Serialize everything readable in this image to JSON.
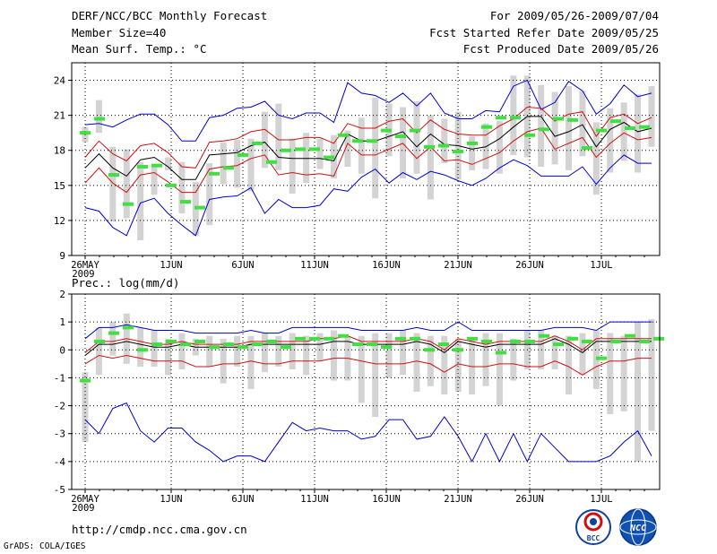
{
  "header": {
    "title": "DERF/NCC/BCC Monthly Forecast",
    "member_size": "Member Size=40",
    "variable": "Mean Surf. Temp.: °C",
    "period": "For 2009/05/26-2009/07/04",
    "refer_date": "Fcst Started Refer Date 2009/05/25",
    "produced_date": "Fcst Produced Date 2009/05/26"
  },
  "footer": {
    "url": "http://cmdp.ncc.cma.gov.cn",
    "credit": "GrADS: COLA/IGES",
    "logo_left_text": "BCC",
    "logo_right_text": "NCC"
  },
  "colors": {
    "ensemble_mean": "#000000",
    "spread_line": "#d01010",
    "min_max_line": "#0000cc",
    "member_box": "#d3d3d3",
    "observed": "#40e040",
    "grid": "#000000"
  },
  "chart_data": [
    {
      "type": "line",
      "name": "temperature-panel",
      "ylabel": "Mean Surf. Temp.: °C",
      "ylim": [
        9,
        25.5
      ],
      "yticks": [
        9,
        12,
        15,
        18,
        21,
        24
      ],
      "xlim": [
        0,
        39.5
      ],
      "xticks": [
        {
          "x": 0,
          "label": "26MAY"
        },
        {
          "x": 6,
          "label": "1JUN"
        },
        {
          "x": 11,
          "label": "6JUN"
        },
        {
          "x": 16,
          "label": "11JUN"
        },
        {
          "x": 21,
          "label": "16JUN"
        },
        {
          "x": 26,
          "label": "21JUN"
        },
        {
          "x": 31,
          "label": "26JUN"
        },
        {
          "x": 36,
          "label": "1JUL"
        }
      ],
      "year_label": "2009",
      "grid": "dotted",
      "series": [
        {
          "name": "ensemble max",
          "color": "#0000cc",
          "values": [
            20.2,
            20.3,
            20.0,
            20.6,
            21.1,
            21.1,
            20.2,
            18.8,
            18.8,
            20.8,
            21.0,
            21.6,
            21.7,
            22.2,
            21.0,
            20.7,
            21.2,
            21.2,
            20.4,
            23.8,
            22.9,
            22.7,
            22.1,
            22.9,
            21.8,
            22.9,
            21.2,
            20.7,
            20.7,
            21.4,
            21.3,
            23.5,
            24.0,
            21.5,
            22.1,
            23.9,
            23.1,
            21.1,
            22.0,
            23.6,
            22.6,
            22.9
          ]
        },
        {
          "name": "spread upper",
          "color": "#d01010",
          "values": [
            17.4,
            18.8,
            17.7,
            17.1,
            18.4,
            18.6,
            17.8,
            16.6,
            16.5,
            18.7,
            18.8,
            19.0,
            19.6,
            19.8,
            18.9,
            18.9,
            19.1,
            19.1,
            18.6,
            20.3,
            19.9,
            19.9,
            20.5,
            20.7,
            19.5,
            20.6,
            19.8,
            19.4,
            19.3,
            19.3,
            20.1,
            20.7,
            21.7,
            21.6,
            20.5,
            21.1,
            21.3,
            19.2,
            20.8,
            21.1,
            20.3,
            20.8
          ]
        },
        {
          "name": "ensemble mean",
          "color": "#000000",
          "values": [
            16.5,
            17.7,
            16.5,
            15.8,
            17.2,
            17.4,
            16.6,
            15.5,
            15.5,
            17.6,
            17.7,
            17.8,
            18.4,
            18.7,
            17.4,
            17.3,
            17.3,
            17.3,
            17.1,
            19.4,
            18.8,
            18.8,
            19.2,
            19.6,
            18.3,
            19.4,
            18.5,
            18.4,
            18.1,
            18.3,
            19.0,
            20.0,
            20.9,
            20.9,
            19.2,
            19.6,
            20.2,
            18.3,
            19.8,
            20.4,
            19.6,
            19.9
          ]
        },
        {
          "name": "spread lower",
          "color": "#d01010",
          "values": [
            15.2,
            16.5,
            15.2,
            14.4,
            15.9,
            16.1,
            15.3,
            14.4,
            14.4,
            16.4,
            16.6,
            16.7,
            17.3,
            17.6,
            15.9,
            16.1,
            15.9,
            16.0,
            15.8,
            18.6,
            17.6,
            17.6,
            18.1,
            18.6,
            17.3,
            18.3,
            17.1,
            17.2,
            16.8,
            17.3,
            17.8,
            18.8,
            19.6,
            19.9,
            18.1,
            18.6,
            19.1,
            17.4,
            18.6,
            19.5,
            18.9,
            19.1
          ]
        },
        {
          "name": "ensemble min",
          "color": "#0000cc",
          "values": [
            13.1,
            12.8,
            11.4,
            10.7,
            13.5,
            13.9,
            12.6,
            11.6,
            10.7,
            13.8,
            14.0,
            14.1,
            14.8,
            12.6,
            13.8,
            13.1,
            13.1,
            13.3,
            14.7,
            14.5,
            15.7,
            16.4,
            15.2,
            16.1,
            15.5,
            16.2,
            15.9,
            15.4,
            15.0,
            15.6,
            16.5,
            17.2,
            16.7,
            15.8,
            15.8,
            15.8,
            16.6,
            15.1,
            16.5,
            17.6,
            16.9,
            16.9
          ]
        }
      ],
      "members_box": {
        "low": [
          18.7,
          19.5,
          11.9,
          12.2,
          10.3,
          14.2,
          16.3,
          12.6,
          10.7,
          11.6,
          15.1,
          14.8,
          14.5,
          16.5,
          16.3,
          14.3,
          15.2,
          16.4,
          15.6,
          16.6,
          16.0,
          13.9,
          17.5,
          15.6,
          16.0,
          13.8,
          16.9,
          15.5,
          16.3,
          16.4,
          16.0,
          17.6,
          17.4,
          16.6,
          16.8,
          16.3,
          17.5,
          14.2,
          16.1,
          17.1,
          16.1,
          18.3
        ],
        "high": [
          20.0,
          22.3,
          18.3,
          18.1,
          17.0,
          16.8,
          17.4,
          17.0,
          15.3,
          16.9,
          18.7,
          18.9,
          19.0,
          21.3,
          22.0,
          19.0,
          19.5,
          19.0,
          19.3,
          19.7,
          20.8,
          22.5,
          22.0,
          21.7,
          22.2,
          21.0,
          20.7,
          21.3,
          19.2,
          20.3,
          20.5,
          24.4,
          24.4,
          23.6,
          23.0,
          23.5,
          23.1,
          20.4,
          21.6,
          22.1,
          22.8,
          23.5
        ]
      },
      "observed": [
        19.5,
        20.7,
        15.9,
        13.4,
        16.6,
        16.7,
        15.0,
        13.6,
        13.1,
        16.0,
        16.5,
        17.6,
        18.6,
        17.0,
        18.0,
        18.1,
        18.1,
        17.4,
        19.3,
        18.8,
        18.8,
        19.7,
        19.2,
        19.7,
        18.3,
        18.4,
        17.9,
        18.6,
        20.0,
        20.8,
        20.8,
        19.3,
        19.8,
        20.7,
        20.6,
        18.2,
        19.7,
        20.5,
        19.9,
        20.0
      ]
    },
    {
      "type": "line",
      "name": "precipitation-panel",
      "ylabel": "Prec.: log(mm/d)",
      "ylim": [
        -5,
        2
      ],
      "yticks": [
        -5,
        -4,
        -3,
        -2,
        -1,
        0,
        1,
        2
      ],
      "xlim": [
        0,
        39.5
      ],
      "xticks": [
        {
          "x": 0,
          "label": "26MAY"
        },
        {
          "x": 6,
          "label": "1JUN"
        },
        {
          "x": 11,
          "label": "6JUN"
        },
        {
          "x": 16,
          "label": "11JUN"
        },
        {
          "x": 21,
          "label": "16JUN"
        },
        {
          "x": 26,
          "label": "21JUN"
        },
        {
          "x": 31,
          "label": "26JUN"
        },
        {
          "x": 36,
          "label": "1JUL"
        }
      ],
      "year_label": "2009",
      "grid": "dotted",
      "series": [
        {
          "name": "ensemble max",
          "color": "#0000cc",
          "values": [
            0.4,
            0.8,
            0.8,
            0.9,
            0.8,
            0.7,
            0.7,
            0.7,
            0.6,
            0.6,
            0.6,
            0.6,
            0.7,
            0.6,
            0.6,
            0.8,
            0.8,
            0.8,
            0.8,
            0.8,
            0.7,
            0.7,
            0.7,
            0.7,
            0.8,
            0.7,
            0.7,
            1.0,
            0.7,
            0.7,
            0.7,
            0.7,
            0.7,
            0.7,
            0.8,
            0.8,
            0.8,
            0.7,
            1.0,
            1.0,
            1.0,
            1.0
          ]
        },
        {
          "name": "spread upper",
          "color": "#d01010",
          "values": [
            -0.1,
            0.3,
            0.3,
            0.4,
            0.3,
            0.2,
            0.2,
            0.3,
            0.2,
            0.2,
            0.2,
            0.2,
            0.3,
            0.3,
            0.3,
            0.3,
            0.3,
            0.4,
            0.4,
            0.5,
            0.3,
            0.3,
            0.3,
            0.3,
            0.4,
            0.3,
            0.0,
            0.4,
            0.3,
            0.2,
            0.3,
            0.3,
            0.3,
            0.3,
            0.5,
            0.3,
            0.0,
            0.4,
            0.4,
            0.4,
            0.4,
            0.4
          ]
        },
        {
          "name": "ensemble mean",
          "color": "#000000",
          "values": [
            -0.2,
            0.2,
            0.2,
            0.3,
            0.2,
            0.1,
            0.1,
            0.2,
            0.1,
            0.1,
            0.1,
            0.1,
            0.2,
            0.2,
            0.2,
            0.2,
            0.2,
            0.2,
            0.3,
            0.3,
            0.2,
            0.2,
            0.2,
            0.2,
            0.3,
            0.2,
            -0.1,
            0.3,
            0.2,
            0.1,
            0.2,
            0.2,
            0.2,
            0.2,
            0.4,
            0.2,
            -0.1,
            0.3,
            0.3,
            0.3,
            0.3,
            0.3
          ]
        },
        {
          "name": "spread lower",
          "color": "#d01010",
          "values": [
            -0.5,
            -0.2,
            -0.3,
            -0.2,
            -0.3,
            -0.4,
            -0.4,
            -0.4,
            -0.6,
            -0.6,
            -0.5,
            -0.5,
            -0.4,
            -0.5,
            -0.5,
            -0.4,
            -0.4,
            -0.4,
            -0.3,
            -0.3,
            -0.4,
            -0.5,
            -0.5,
            -0.5,
            -0.4,
            -0.5,
            -0.8,
            -0.5,
            -0.6,
            -0.6,
            -0.5,
            -0.5,
            -0.6,
            -0.6,
            -0.4,
            -0.6,
            -0.9,
            -0.6,
            -0.4,
            -0.4,
            -0.3,
            -0.3
          ]
        },
        {
          "name": "ensemble min",
          "color": "#0000cc",
          "values": [
            -2.5,
            -3.0,
            -2.1,
            -1.9,
            -2.9,
            -3.3,
            -2.8,
            -2.8,
            -3.3,
            -3.6,
            -4.0,
            -3.8,
            -3.8,
            -4.0,
            -3.3,
            -2.6,
            -2.9,
            -2.8,
            -2.9,
            -2.9,
            -3.2,
            -3.1,
            -2.5,
            -2.5,
            -3.2,
            -3.1,
            -2.4,
            -3.1,
            -4.0,
            -3.0,
            -4.0,
            -3.0,
            -4.0,
            -3.0,
            -3.5,
            -4.0,
            -4.0,
            -4.0,
            -3.8,
            -3.3,
            -2.9,
            -3.8
          ]
        }
      ],
      "members_box": {
        "low": [
          -3.3,
          -0.9,
          -0.2,
          -0.5,
          -0.6,
          -0.6,
          -0.9,
          -0.7,
          -0.2,
          -0.6,
          -1.2,
          -0.6,
          -1.4,
          -0.8,
          -0.6,
          -0.7,
          -0.9,
          -0.4,
          -1.1,
          -1.1,
          -1.9,
          -2.4,
          -1.0,
          -0.9,
          -1.5,
          -1.3,
          -1.6,
          -1.5,
          -1.6,
          -1.3,
          -2.0,
          -1.1,
          -0.7,
          -0.7,
          -0.7,
          -1.6,
          -0.9,
          -1.4,
          -2.3,
          -2.2,
          -4.0,
          -2.9
        ],
        "high": [
          -0.8,
          0.8,
          1.0,
          1.3,
          0.8,
          0.7,
          0.4,
          0.6,
          0.4,
          0.5,
          0.4,
          0.5,
          0.5,
          0.6,
          0.5,
          0.6,
          0.5,
          0.6,
          0.7,
          0.5,
          0.5,
          0.6,
          0.6,
          0.7,
          0.6,
          0.5,
          0.5,
          0.4,
          0.4,
          0.6,
          0.6,
          0.4,
          0.7,
          0.7,
          0.5,
          0.5,
          0.6,
          0.7,
          0.6,
          0.5,
          1.0,
          1.1
        ]
      },
      "observed": [
        -1.1,
        0.3,
        0.6,
        0.8,
        0.0,
        0.2,
        0.3,
        0.2,
        0.3,
        0.1,
        0.2,
        0.1,
        0.2,
        0.3,
        0.1,
        0.4,
        0.4,
        0.4,
        0.5,
        0.2,
        0.2,
        0.1,
        0.4,
        0.4,
        0.0,
        0.2,
        0.0,
        0.4,
        0.3,
        -0.1,
        0.3,
        0.3,
        0.5,
        0.2,
        0.4,
        0.3,
        -0.3,
        0.3,
        0.5,
        0.3,
        0.4
      ]
    }
  ]
}
